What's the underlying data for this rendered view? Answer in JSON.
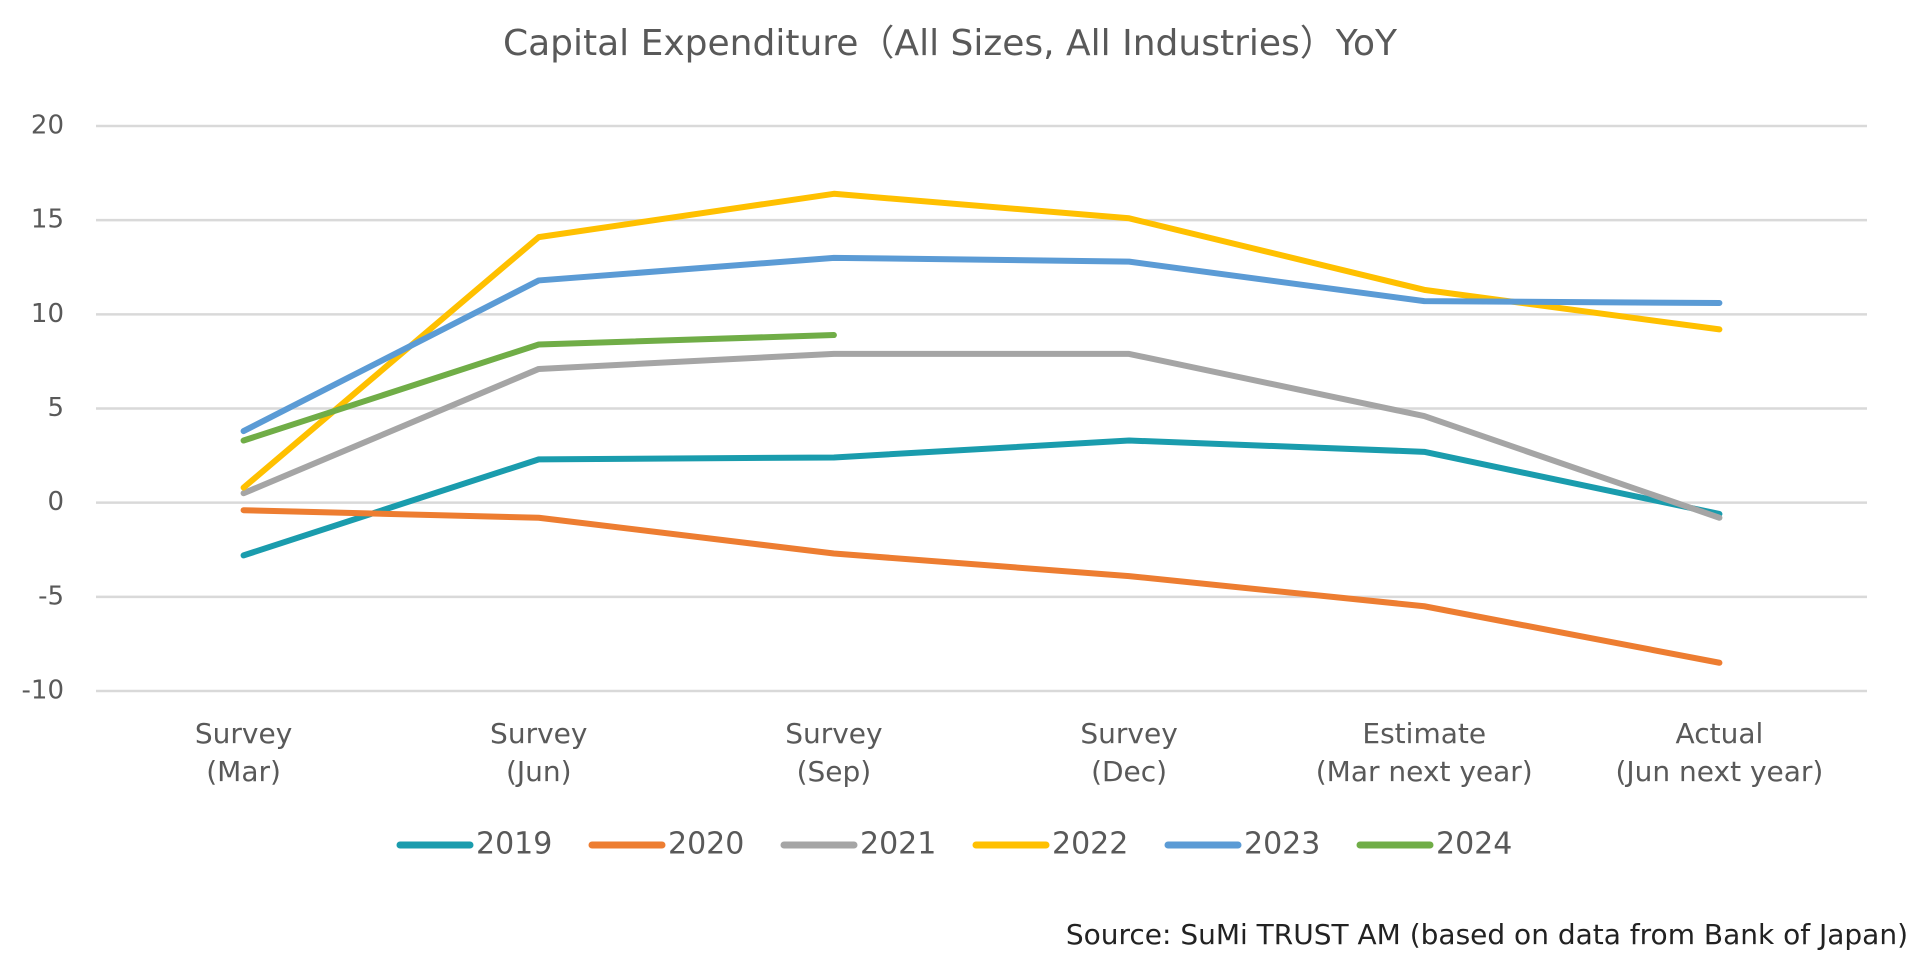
{
  "chart_data": {
    "type": "line",
    "title": "Capital Expenditure（All Sizes, All Industries）YoY",
    "categories": [
      [
        "Survey",
        "(Mar)"
      ],
      [
        "Survey",
        "(Jun)"
      ],
      [
        "Survey",
        "(Sep)"
      ],
      [
        "Survey",
        "(Dec)"
      ],
      [
        "Estimate",
        "(Mar next year)"
      ],
      [
        "Actual",
        "(Jun next year)"
      ]
    ],
    "series": [
      {
        "name": "2019",
        "color": "#1a9cad",
        "values": [
          -2.8,
          2.3,
          2.4,
          3.3,
          2.7,
          -0.6
        ]
      },
      {
        "name": "2020",
        "color": "#ed7d31",
        "values": [
          -0.4,
          -0.8,
          -2.7,
          -3.9,
          -5.5,
          -8.5
        ]
      },
      {
        "name": "2021",
        "color": "#a5a5a5",
        "values": [
          0.5,
          7.1,
          7.9,
          7.9,
          4.6,
          -0.8
        ]
      },
      {
        "name": "2022",
        "color": "#ffc000",
        "values": [
          0.8,
          14.1,
          16.4,
          15.1,
          11.3,
          9.2
        ]
      },
      {
        "name": "2023",
        "color": "#5b9bd5",
        "values": [
          3.8,
          11.8,
          13.0,
          12.8,
          10.7,
          10.6
        ]
      },
      {
        "name": "2024",
        "color": "#70ad47",
        "values": [
          3.3,
          8.4,
          8.9,
          null,
          null,
          null
        ]
      }
    ],
    "ylim": [
      -10,
      20
    ],
    "yticks": [
      -10,
      -5,
      0,
      5,
      10,
      15,
      20
    ],
    "grid": true,
    "legend": "bottom",
    "source": "Source: SuMi TRUST AM (based on data from Bank of Japan)"
  }
}
